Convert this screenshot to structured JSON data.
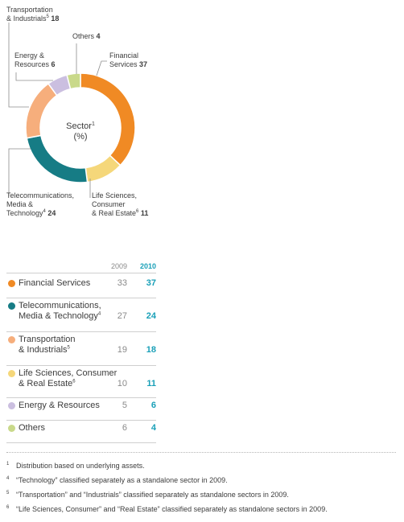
{
  "chart_data": {
    "type": "pie",
    "title": "Sector",
    "title_sup": "1",
    "unit": "(%)",
    "slices": [
      {
        "label_lines": [
          "Financial",
          "Services"
        ],
        "value": 37,
        "color": "#f08a24"
      },
      {
        "label_lines": [
          "Life Sciences,",
          "Consumer",
          "& Real Estate"
        ],
        "sup": "6",
        "value": 11,
        "color": "#f5d77a"
      },
      {
        "label_lines": [
          "Telecommunications,",
          "Media &",
          "Technology"
        ],
        "sup": "4",
        "value": 24,
        "color": "#167c85"
      },
      {
        "label_lines": [
          "Transportation",
          "& Industrials"
        ],
        "sup": "5",
        "value": 18,
        "color": "#f6ae7c"
      },
      {
        "label_lines": [
          "Energy &",
          "Resources"
        ],
        "value": 6,
        "color": "#cbbfe0"
      },
      {
        "label_lines": [
          "Others"
        ],
        "value": 4,
        "color": "#c9d98a"
      }
    ]
  },
  "table": {
    "headers": {
      "y2009": "2009",
      "y2010": "2010"
    },
    "rows": [
      {
        "label_lines": [
          "Financial Services"
        ],
        "sup": "",
        "v2009": "33",
        "v2010": "37",
        "color": "#f08a24"
      },
      {
        "label_lines": [
          "Telecommunications,",
          "Media & Technology"
        ],
        "sup": "4",
        "v2009": "27",
        "v2010": "24",
        "color": "#167c85"
      },
      {
        "label_lines": [
          "Transportation",
          "& Industrials"
        ],
        "sup": "5",
        "v2009": "19",
        "v2010": "18",
        "color": "#f6ae7c"
      },
      {
        "label_lines": [
          "Life Sciences, Consumer",
          "& Real Estate"
        ],
        "sup": "6",
        "v2009": "10",
        "v2010": "11",
        "color": "#f5d77a"
      },
      {
        "label_lines": [
          "Energy & Resources"
        ],
        "sup": "",
        "v2009": "5",
        "v2010": "6",
        "color": "#cbbfe0"
      },
      {
        "label_lines": [
          "Others"
        ],
        "sup": "",
        "v2009": "6",
        "v2010": "4",
        "color": "#c9d98a"
      }
    ]
  },
  "footnotes": [
    {
      "num": "1",
      "text": "Distribution based on underlying assets."
    },
    {
      "num": "4",
      "text": "“Technology” classified separately as a standalone sector in 2009."
    },
    {
      "num": "5",
      "text": "“Transportation” and “Industrials” classified separately as standalone sectors in 2009."
    },
    {
      "num": "6",
      "text": "“Life Sciences, Consumer” and “Real Estate” classified separately as standalone sectors in 2009."
    }
  ]
}
